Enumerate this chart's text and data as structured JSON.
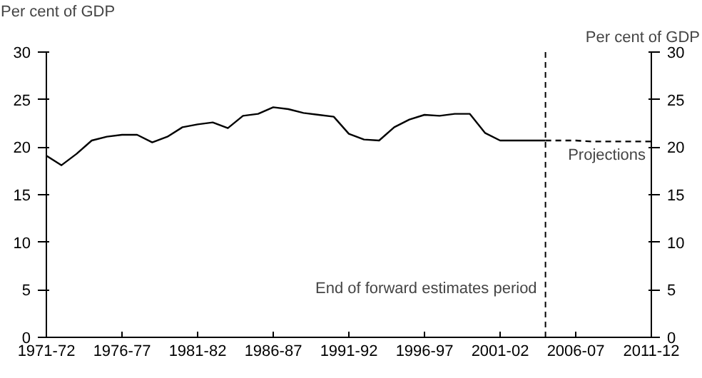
{
  "chart_data": {
    "type": "line",
    "ylabel": "Per cent of GDP",
    "y2label": "Per cent of GDP",
    "categories": [
      "1971-72",
      null,
      null,
      null,
      null,
      "1976-77",
      null,
      null,
      null,
      null,
      "1981-82",
      null,
      null,
      null,
      null,
      "1986-87",
      null,
      null,
      null,
      null,
      "1991-92",
      null,
      null,
      null,
      null,
      "1996-97",
      null,
      null,
      null,
      null,
      "2001-02",
      null,
      null,
      null,
      null,
      "2006-07",
      null,
      null,
      null,
      null,
      "2011-12"
    ],
    "series": [
      {
        "color": "#000000",
        "line_style": "solid",
        "values": [
          19.1,
          18.1,
          19.3,
          20.7,
          21.1,
          21.3,
          21.3,
          20.5,
          21.1,
          22.1,
          22.4,
          22.6,
          22.0,
          23.3,
          23.5,
          24.2,
          24.0,
          23.6,
          23.4,
          23.2,
          21.4,
          20.8,
          20.7,
          22.1,
          22.9,
          23.4,
          23.3,
          23.5,
          23.5,
          21.5,
          20.7,
          20.7,
          20.7,
          20.7,
          null,
          null,
          null,
          null,
          null,
          null,
          null
        ]
      },
      {
        "color": "#000000",
        "line_style": "dashed",
        "values": [
          null,
          null,
          null,
          null,
          null,
          null,
          null,
          null,
          null,
          null,
          null,
          null,
          null,
          null,
          null,
          null,
          null,
          null,
          null,
          null,
          null,
          null,
          null,
          null,
          null,
          null,
          null,
          null,
          null,
          null,
          null,
          null,
          null,
          20.7,
          20.7,
          20.7,
          20.6,
          20.6,
          20.6,
          20.6,
          20.6
        ]
      }
    ],
    "ylim": [
      0,
      30
    ],
    "yticks": [
      0,
      5,
      10,
      15,
      20,
      25,
      30
    ],
    "y2lim": [
      0,
      30
    ],
    "y2ticks": [
      0,
      5,
      10,
      15,
      20,
      25,
      30
    ],
    "annotations": [
      "End of forward estimates period",
      "Projections"
    ]
  }
}
